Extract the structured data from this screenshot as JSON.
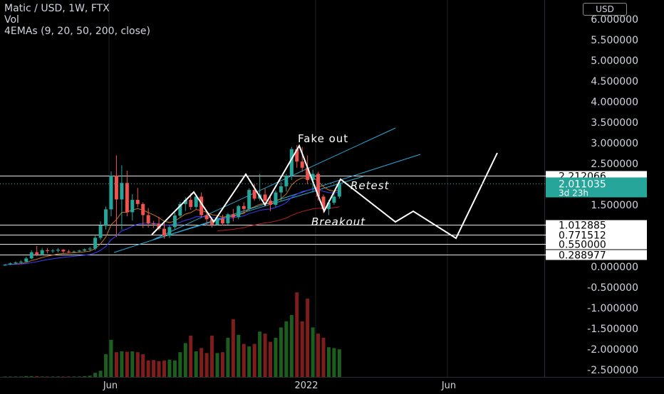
{
  "header": {
    "title": "Matic / USD, 1W, FTX",
    "vol": "Vol",
    "ema": "4EMAs (9, 20, 50, 200, close)",
    "currency": "USD"
  },
  "colors": {
    "up": "#26a69a",
    "down": "#ef5350",
    "vol_up": "#1b5e20",
    "vol_down": "#7f1d1d",
    "channel": "#2aa9d6",
    "drawing": "#ffffff",
    "ema_orange": "#c8741a",
    "ema_blue": "#3d3dff",
    "ema_red": "#b22222",
    "last_price": "#26a69a"
  },
  "chart_data": {
    "type": "candlestick",
    "y_axis": {
      "ticks": [
        "6.000000",
        "5.500000",
        "5.000000",
        "4.500000",
        "4.000000",
        "3.500000",
        "3.000000",
        "2.500000",
        "1.500000",
        "0.000000",
        "-0.500000",
        "-1.000000",
        "-1.500000",
        "-2.000000",
        "-2.500000"
      ],
      "ylim": [
        -2.6,
        6.1
      ]
    },
    "x_axis": {
      "ticks": [
        "Jun",
        "2022",
        "Jun"
      ]
    },
    "levels": [
      "2.212066",
      "1.012885",
      "0.771512",
      "0.550000",
      "0.288977"
    ],
    "last_price": {
      "value": "2.011035",
      "countdown": "3d 23h"
    },
    "annotations": [
      "Fake out",
      "Retest",
      "Breakout"
    ],
    "candles": [
      [
        0.03,
        0.06,
        0.02,
        0.05
      ],
      [
        0.05,
        0.1,
        0.04,
        0.08
      ],
      [
        0.08,
        0.13,
        0.06,
        0.1
      ],
      [
        0.1,
        0.16,
        0.08,
        0.12
      ],
      [
        0.12,
        0.24,
        0.1,
        0.2
      ],
      [
        0.2,
        0.4,
        0.18,
        0.35
      ],
      [
        0.35,
        0.5,
        0.25,
        0.3
      ],
      [
        0.3,
        0.45,
        0.27,
        0.4
      ],
      [
        0.4,
        0.45,
        0.32,
        0.38
      ],
      [
        0.38,
        0.43,
        0.33,
        0.39
      ],
      [
        0.39,
        0.45,
        0.35,
        0.41
      ],
      [
        0.41,
        0.43,
        0.33,
        0.37
      ],
      [
        0.37,
        0.41,
        0.33,
        0.36
      ],
      [
        0.36,
        0.39,
        0.33,
        0.37
      ],
      [
        0.37,
        0.41,
        0.35,
        0.39
      ],
      [
        0.39,
        0.44,
        0.36,
        0.42
      ],
      [
        0.42,
        0.48,
        0.38,
        0.44
      ],
      [
        0.44,
        0.75,
        0.4,
        0.7
      ],
      [
        0.7,
        1.1,
        0.65,
        1.0
      ],
      [
        0.99,
        1.46,
        0.9,
        1.39
      ],
      [
        1.39,
        2.31,
        1.22,
        2.21
      ],
      [
        2.21,
        2.7,
        0.72,
        1.63
      ],
      [
        1.63,
        2.46,
        0.9,
        2.03
      ],
      [
        2.03,
        2.33,
        1.22,
        1.32
      ],
      [
        1.32,
        1.76,
        1.12,
        1.62
      ],
      [
        1.62,
        1.91,
        1.44,
        1.52
      ],
      [
        1.52,
        1.56,
        0.94,
        1.25
      ],
      [
        1.25,
        1.42,
        0.95,
        1.05
      ],
      [
        1.05,
        1.11,
        0.94,
        1.04
      ],
      [
        1.04,
        1.21,
        0.88,
        0.92
      ],
      [
        0.92,
        1.05,
        0.68,
        0.75
      ],
      [
        0.75,
        1.0,
        0.7,
        0.96
      ],
      [
        0.96,
        1.31,
        0.9,
        1.24
      ],
      [
        1.24,
        1.57,
        1.2,
        1.52
      ],
      [
        1.52,
        1.68,
        1.35,
        1.62
      ],
      [
        1.62,
        1.78,
        1.38,
        1.45
      ],
      [
        1.45,
        1.74,
        1.4,
        1.7
      ],
      [
        1.7,
        1.8,
        1.2,
        1.25
      ],
      [
        1.25,
        1.34,
        1.0,
        1.15
      ],
      [
        1.15,
        1.18,
        0.95,
        1.02
      ],
      [
        1.02,
        1.2,
        1.0,
        1.17
      ],
      [
        1.17,
        1.26,
        1.0,
        1.05
      ],
      [
        1.05,
        1.3,
        1.02,
        1.27
      ],
      [
        1.27,
        1.4,
        1.1,
        1.2
      ],
      [
        1.2,
        1.5,
        1.15,
        1.47
      ],
      [
        1.47,
        1.56,
        1.3,
        1.4
      ],
      [
        1.4,
        1.9,
        1.35,
        1.86
      ],
      [
        1.86,
        2.0,
        1.6,
        1.65
      ],
      [
        1.65,
        2.25,
        1.6,
        1.75
      ],
      [
        1.75,
        1.9,
        1.5,
        1.6
      ],
      [
        1.6,
        1.7,
        1.35,
        1.5
      ],
      [
        1.5,
        1.85,
        1.44,
        1.8
      ],
      [
        1.8,
        2.05,
        1.6,
        1.95
      ],
      [
        1.95,
        2.25,
        1.82,
        2.2
      ],
      [
        2.2,
        2.9,
        2.1,
        2.85
      ],
      [
        2.85,
        2.95,
        2.4,
        2.55
      ],
      [
        2.55,
        2.9,
        2.3,
        2.4
      ],
      [
        2.4,
        2.7,
        2.0,
        2.1
      ],
      [
        2.1,
        2.35,
        1.8,
        2.25
      ],
      [
        2.25,
        2.3,
        1.6,
        1.7
      ],
      [
        1.7,
        1.75,
        1.3,
        1.4
      ],
      [
        1.4,
        1.62,
        1.25,
        1.55
      ],
      [
        1.55,
        1.78,
        1.5,
        1.7
      ],
      [
        1.7,
        2.05,
        1.65,
        2.01
      ]
    ],
    "volumes": [
      0.01,
      0.01,
      0.01,
      0.01,
      0.02,
      0.02,
      0.02,
      0.01,
      0.01,
      0.01,
      0.01,
      0.01,
      0.01,
      0.01,
      0.01,
      0.02,
      0.03,
      0.1,
      0.15,
      0.55,
      0.9,
      0.6,
      0.62,
      0.61,
      0.62,
      0.6,
      0.55,
      0.4,
      0.41,
      0.38,
      0.4,
      0.42,
      0.4,
      0.6,
      0.82,
      1.0,
      0.62,
      0.7,
      0.58,
      1.0,
      0.58,
      0.6,
      0.95,
      1.4,
      1.02,
      0.8,
      0.74,
      0.8,
      1.1,
      1.05,
      0.85,
      0.95,
      1.2,
      1.35,
      1.5,
      2.05,
      1.35,
      1.9,
      1.2,
      1.05,
      0.95,
      0.72,
      0.7,
      0.67
    ]
  }
}
